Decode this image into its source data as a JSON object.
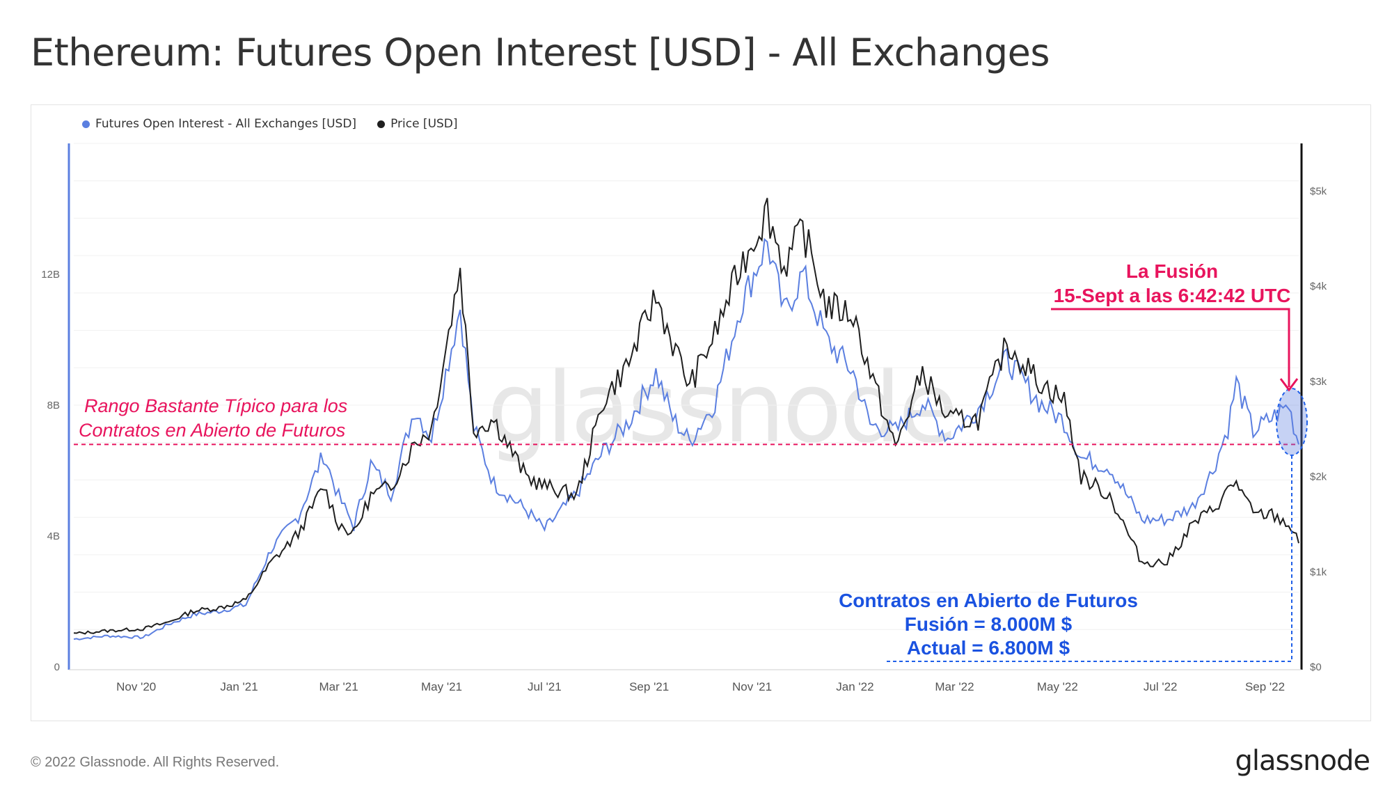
{
  "title": "Ethereum: Futures Open Interest [USD] - All Exchanges",
  "footer": "© 2022 Glassnode. All Rights Reserved.",
  "logo": "glassnode",
  "watermark": "glassnode",
  "colors": {
    "open_interest": "#5b7fe0",
    "price": "#1f1f1f",
    "annotation_red": "#e8145d",
    "annotation_blue": "#1f5fe8",
    "ann_blue_text": "#1a52e0"
  },
  "legend": [
    {
      "label": "Futures Open Interest - All Exchanges [USD]",
      "color": "#5b7fe0"
    },
    {
      "label": "Price [USD]",
      "color": "#1f1f1f"
    }
  ],
  "annotations": {
    "range_label_1": "Rango Bastante Típico para los",
    "range_label_2": "Contratos en Abierto de Futuros",
    "merge_line_1": "La Fusión",
    "merge_line_2": "15-Sept a las 6:42:42 UTC",
    "oi_line_1": "Contratos en Abierto de Futuros",
    "oi_line_2": "Fusión = 8.000M $",
    "oi_line_3": "Actual = 6.800M $"
  },
  "chart_data": {
    "type": "line",
    "x_ticks": [
      "Nov '20",
      "Jan '21",
      "Mar '21",
      "May '21",
      "Jul '21",
      "Sep '21",
      "Nov '21",
      "Jan '22",
      "Mar '22",
      "May '22",
      "Jul '22",
      "Sep '22"
    ],
    "y_left_ticks": [
      "0",
      "4B",
      "8B",
      "12B"
    ],
    "y_right_ticks": [
      "$0",
      "$1k",
      "$2k",
      "$3k",
      "$4k",
      "$5k"
    ],
    "y_left_range": [
      0,
      16000000000
    ],
    "y_right_range": [
      0,
      5500
    ],
    "reference_line": 6800000000,
    "x_range": [
      "2020-09-25",
      "2022-09-21"
    ],
    "series": [
      {
        "name": "Futures Open Interest - All Exchanges [USD]",
        "axis": "left",
        "points": [
          [
            "2020-09-25",
            850000000.0
          ],
          [
            "2020-10-15",
            950000000.0
          ],
          [
            "2020-11-05",
            900000000.0
          ],
          [
            "2020-11-20",
            1300000000.0
          ],
          [
            "2020-12-05",
            1600000000.0
          ],
          [
            "2020-12-20",
            1700000000.0
          ],
          [
            "2021-01-05",
            1900000000.0
          ],
          [
            "2021-01-20",
            3600000000.0
          ],
          [
            "2021-02-05",
            4600000000.0
          ],
          [
            "2021-02-20",
            6500000000.0
          ],
          [
            "2021-03-01",
            5200000000.0
          ],
          [
            "2021-03-10",
            4300000000.0
          ],
          [
            "2021-03-20",
            6200000000.0
          ],
          [
            "2021-04-01",
            5300000000.0
          ],
          [
            "2021-04-15",
            7900000000.0
          ],
          [
            "2021-04-25",
            7000000000.0
          ],
          [
            "2021-05-12",
            11000000000.0
          ],
          [
            "2021-05-20",
            7300000000.0
          ],
          [
            "2021-06-01",
            5600000000.0
          ],
          [
            "2021-06-20",
            4800000000.0
          ],
          [
            "2021-07-01",
            4200000000.0
          ],
          [
            "2021-07-20",
            5300000000.0
          ],
          [
            "2021-08-05",
            6600000000.0
          ],
          [
            "2021-08-20",
            7500000000.0
          ],
          [
            "2021-09-05",
            9000000000.0
          ],
          [
            "2021-09-15",
            7600000000.0
          ],
          [
            "2021-09-25",
            6900000000.0
          ],
          [
            "2021-10-10",
            8100000000.0
          ],
          [
            "2021-10-25",
            11000000000.0
          ],
          [
            "2021-11-10",
            13000000000.0
          ],
          [
            "2021-11-20",
            10800000000.0
          ],
          [
            "2021-12-01",
            12000000000.0
          ],
          [
            "2021-12-15",
            10000000000.0
          ],
          [
            "2021-12-31",
            9000000000.0
          ],
          [
            "2022-01-10",
            7400000000.0
          ],
          [
            "2022-01-25",
            7200000000.0
          ],
          [
            "2022-02-10",
            8100000000.0
          ],
          [
            "2022-02-25",
            7000000000.0
          ],
          [
            "2022-03-15",
            7900000000.0
          ],
          [
            "2022-04-01",
            9400000000.0
          ],
          [
            "2022-04-20",
            8100000000.0
          ],
          [
            "2022-05-05",
            7500000000.0
          ],
          [
            "2022-05-15",
            6400000000.0
          ],
          [
            "2022-06-01",
            6100000000.0
          ],
          [
            "2022-06-20",
            4500000000.0
          ],
          [
            "2022-07-05",
            4500000000.0
          ],
          [
            "2022-07-20",
            4900000000.0
          ],
          [
            "2022-08-01",
            6000000000.0
          ],
          [
            "2022-08-10",
            7300000000.0
          ],
          [
            "2022-08-15",
            8700000000.0
          ],
          [
            "2022-08-25",
            7200000000.0
          ],
          [
            "2022-09-05",
            7600000000.0
          ],
          [
            "2022-09-15",
            8000000000.0
          ],
          [
            "2022-09-21",
            6800000000.0
          ]
        ]
      },
      {
        "name": "Price [USD]",
        "axis": "right",
        "points": [
          [
            "2020-09-25",
            350
          ],
          [
            "2020-10-15",
            380
          ],
          [
            "2020-11-05",
            400
          ],
          [
            "2020-11-20",
            470
          ],
          [
            "2020-12-05",
            590
          ],
          [
            "2020-12-20",
            620
          ],
          [
            "2021-01-05",
            700
          ],
          [
            "2021-01-20",
            1100
          ],
          [
            "2021-02-05",
            1400
          ],
          [
            "2021-02-20",
            1900
          ],
          [
            "2021-03-01",
            1500
          ],
          [
            "2021-03-10",
            1400
          ],
          [
            "2021-03-20",
            1800
          ],
          [
            "2021-04-01",
            1900
          ],
          [
            "2021-04-15",
            2350
          ],
          [
            "2021-04-25",
            2500
          ],
          [
            "2021-05-12",
            4200
          ],
          [
            "2021-05-20",
            2500
          ],
          [
            "2021-06-01",
            2600
          ],
          [
            "2021-06-20",
            2000
          ],
          [
            "2021-07-01",
            1900
          ],
          [
            "2021-07-20",
            1800
          ],
          [
            "2021-08-05",
            2800
          ],
          [
            "2021-08-20",
            3200
          ],
          [
            "2021-09-05",
            3900
          ],
          [
            "2021-09-15",
            3400
          ],
          [
            "2021-09-25",
            2950
          ],
          [
            "2021-10-10",
            3500
          ],
          [
            "2021-10-25",
            4200
          ],
          [
            "2021-11-10",
            4800
          ],
          [
            "2021-11-20",
            4200
          ],
          [
            "2021-12-01",
            4600
          ],
          [
            "2021-12-15",
            3800
          ],
          [
            "2021-12-31",
            3700
          ],
          [
            "2022-01-10",
            3100
          ],
          [
            "2022-01-25",
            2300
          ],
          [
            "2022-02-10",
            3100
          ],
          [
            "2022-02-25",
            2600
          ],
          [
            "2022-03-15",
            2600
          ],
          [
            "2022-04-01",
            3400
          ],
          [
            "2022-04-20",
            3000
          ],
          [
            "2022-05-05",
            2800
          ],
          [
            "2022-05-15",
            2000
          ],
          [
            "2022-06-01",
            1800
          ],
          [
            "2022-06-20",
            1100
          ],
          [
            "2022-07-05",
            1100
          ],
          [
            "2022-07-20",
            1500
          ],
          [
            "2022-08-01",
            1650
          ],
          [
            "2022-08-10",
            1850
          ],
          [
            "2022-08-15",
            1950
          ],
          [
            "2022-08-25",
            1600
          ],
          [
            "2022-09-05",
            1600
          ],
          [
            "2022-09-15",
            1500
          ],
          [
            "2022-09-21",
            1300
          ]
        ]
      }
    ]
  }
}
